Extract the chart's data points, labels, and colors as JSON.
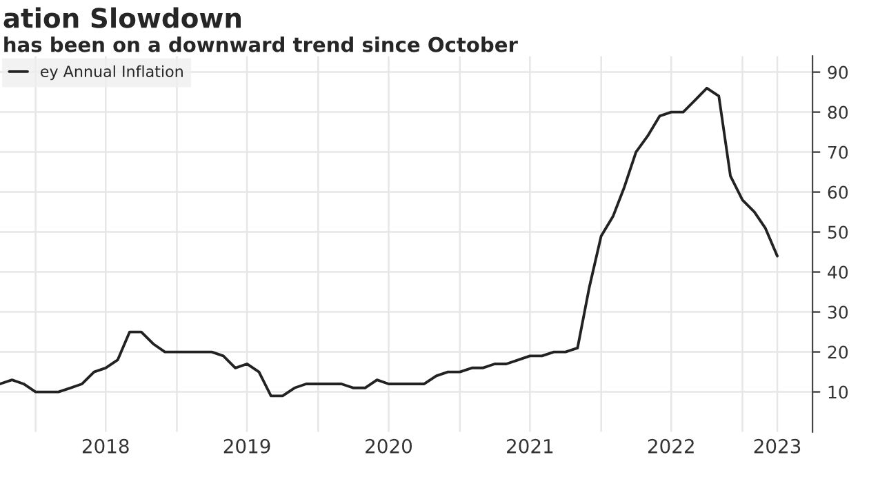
{
  "chart_data": {
    "type": "line",
    "title": "ation Slowdown",
    "subtitle": "has been on a downward trend since October",
    "x": [
      "2017-10",
      "2017-11",
      "2017-12",
      "2018-01",
      "2018-02",
      "2018-03",
      "2018-04",
      "2018-05",
      "2018-06",
      "2018-07",
      "2018-08",
      "2018-09",
      "2018-10",
      "2018-11",
      "2018-12",
      "2019-01",
      "2019-02",
      "2019-03",
      "2019-04",
      "2019-05",
      "2019-06",
      "2019-07",
      "2019-08",
      "2019-09",
      "2019-10",
      "2019-11",
      "2019-12",
      "2020-01",
      "2020-02",
      "2020-03",
      "2020-04",
      "2020-05",
      "2020-06",
      "2020-07",
      "2020-08",
      "2020-09",
      "2020-10",
      "2020-11",
      "2020-12",
      "2021-01",
      "2021-02",
      "2021-03",
      "2021-04",
      "2021-05",
      "2021-06",
      "2021-07",
      "2021-08",
      "2021-09",
      "2021-10",
      "2021-11",
      "2021-12",
      "2022-01",
      "2022-02",
      "2022-03",
      "2022-04",
      "2022-05",
      "2022-06",
      "2022-07",
      "2022-08",
      "2022-09",
      "2022-10",
      "2022-11",
      "2022-12",
      "2023-01",
      "2023-02",
      "2023-03",
      "2023-04"
    ],
    "series": [
      {
        "name": "ey Annual Inflation",
        "color": "#222222",
        "values": [
          12,
          13,
          12,
          10,
          10,
          10,
          11,
          12,
          15,
          16,
          18,
          25,
          25,
          22,
          20,
          20,
          20,
          20,
          20,
          19,
          16,
          17,
          15,
          9,
          9,
          11,
          12,
          12,
          12,
          12,
          11,
          11,
          13,
          12,
          12,
          12,
          12,
          14,
          15,
          15,
          16,
          16,
          17,
          17,
          18,
          19,
          19,
          20,
          20,
          21,
          36,
          49,
          54,
          61,
          70,
          74,
          79,
          80,
          80,
          83,
          86,
          84,
          64,
          58,
          55,
          51,
          44
        ]
      }
    ],
    "xlim": [
      "2017-10",
      "2023-07"
    ],
    "xticks": [
      {
        "value": "2018-01-01",
        "label": null
      },
      {
        "value": "2018-07-01",
        "label": "2018"
      },
      {
        "value": "2019-01-01",
        "label": null
      },
      {
        "value": "2019-07-01",
        "label": "2019"
      },
      {
        "value": "2020-01-01",
        "label": null
      },
      {
        "value": "2020-07-01",
        "label": "2020"
      },
      {
        "value": "2021-01-01",
        "label": null
      },
      {
        "value": "2021-07-01",
        "label": "2021"
      },
      {
        "value": "2022-01-01",
        "label": null
      },
      {
        "value": "2022-07-01",
        "label": "2022"
      },
      {
        "value": "2023-01-01",
        "label": null
      },
      {
        "value": "2023-04-01",
        "label": "2023"
      }
    ],
    "ylim": [
      0,
      94
    ],
    "yticks": [
      10,
      20,
      30,
      40,
      50,
      60,
      70,
      80,
      90
    ],
    "grid": true,
    "legend": "top left",
    "marker": "none",
    "line_style": "solid"
  }
}
